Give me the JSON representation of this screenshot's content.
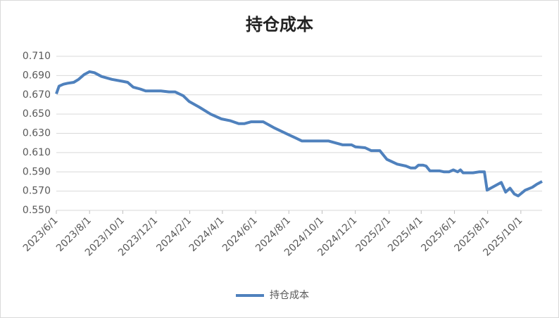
{
  "chart_data": {
    "type": "line",
    "title": "持仓成本",
    "x": [
      "2023/6/1",
      "2023/6/6",
      "2023/6/14",
      "2023/6/22",
      "2023/7/3",
      "2023/7/12",
      "2023/7/22",
      "2023/8/1",
      "2023/8/10",
      "2023/8/23",
      "2023/9/11",
      "2023/10/1",
      "2023/10/10",
      "2023/10/20",
      "2023/11/2",
      "2023/11/12",
      "2023/12/10",
      "2023/12/25",
      "2024/1/5",
      "2024/1/20",
      "2024/1/31",
      "2024/2/19",
      "2024/3/10",
      "2024/3/30",
      "2024/4/16",
      "2024/5/1",
      "2024/5/11",
      "2024/5/24",
      "2024/6/15",
      "2024/7/4",
      "2024/7/30",
      "2024/8/14",
      "2024/8/25",
      "2024/10/13",
      "2024/11/8",
      "2024/11/24",
      "2024/12/1",
      "2024/12/19",
      "2024/12/30",
      "2025/1/15",
      "2025/1/28",
      "2025/2/16",
      "2025/3/4",
      "2025/3/13",
      "2025/3/21",
      "2025/3/27",
      "2025/4/4",
      "2025/4/10",
      "2025/4/17",
      "2025/5/5",
      "2025/5/13",
      "2025/5/22",
      "2025/5/30",
      "2025/6/7",
      "2025/6/12",
      "2025/6/17",
      "2025/7/5",
      "2025/7/16",
      "2025/7/26",
      "2025/7/31",
      "2025/8/26",
      "2025/9/3",
      "2025/9/11",
      "2025/9/19",
      "2025/9/26",
      "2025/10/9",
      "2025/10/22",
      "2025/10/30",
      "2025/11/9"
    ],
    "series": [
      {
        "name": "持仓成本",
        "color": "#4f81bd",
        "values": [
          0.671,
          0.679,
          0.681,
          0.682,
          0.683,
          0.686,
          0.691,
          0.694,
          0.693,
          0.689,
          0.686,
          0.684,
          0.683,
          0.678,
          0.676,
          0.674,
          0.674,
          0.673,
          0.673,
          0.669,
          0.663,
          0.657,
          0.65,
          0.645,
          0.643,
          0.64,
          0.64,
          0.642,
          0.642,
          0.636,
          0.629,
          0.625,
          0.622,
          0.622,
          0.618,
          0.618,
          0.616,
          0.615,
          0.612,
          0.612,
          0.603,
          0.598,
          0.596,
          0.594,
          0.594,
          0.597,
          0.597,
          0.596,
          0.591,
          0.591,
          0.59,
          0.59,
          0.592,
          0.59,
          0.592,
          0.589,
          0.589,
          0.59,
          0.59,
          0.571,
          0.579,
          0.569,
          0.573,
          0.567,
          0.565,
          0.571,
          0.574,
          0.577,
          0.58
        ]
      }
    ],
    "xlim": [
      "2023/6/1",
      "2025/11/9"
    ],
    "xticks": [
      "2023/6/1",
      "2023/8/1",
      "2023/10/1",
      "2023/12/1",
      "2024/2/1",
      "2024/4/1",
      "2024/6/1",
      "2024/8/1",
      "2024/10/1",
      "2024/12/1",
      "2025/2/1",
      "2025/4/1",
      "2025/6/1",
      "2025/8/1",
      "2025/10/1"
    ],
    "ylim": [
      0.55,
      0.71
    ],
    "yticks": [
      {
        "value": 0.55,
        "label": "0.550"
      },
      {
        "value": 0.57,
        "label": "0.570"
      },
      {
        "value": 0.59,
        "label": "0.590"
      },
      {
        "value": 0.61,
        "label": "0.610"
      },
      {
        "value": 0.63,
        "label": "0.630"
      },
      {
        "value": 0.65,
        "label": "0.650"
      },
      {
        "value": 0.67,
        "label": "0.670"
      },
      {
        "value": 0.69,
        "label": "0.690"
      },
      {
        "value": 0.71,
        "label": "0.710"
      }
    ],
    "grid": true,
    "legend": "bottom"
  }
}
